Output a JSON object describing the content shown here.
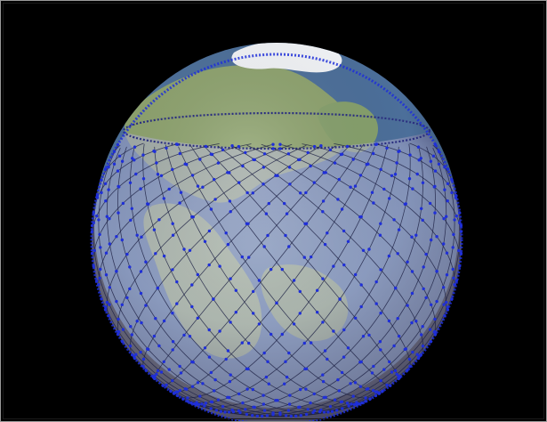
{
  "image": {
    "subject": "satellite-constellation-globe",
    "background_color": "#000000",
    "frame_color": "#9a9a9a",
    "colors": {
      "ocean": "#4c6f9a",
      "land": "#8ea36e",
      "ice": "#f3f5f8",
      "shell_tint": "#b7b7d6",
      "orbit_lines": "#1d2144",
      "satellites": "#1f2fd8"
    },
    "constellation": {
      "planes": 36,
      "satellites_per_plane": 40,
      "inclination_deg": 53
    }
  }
}
